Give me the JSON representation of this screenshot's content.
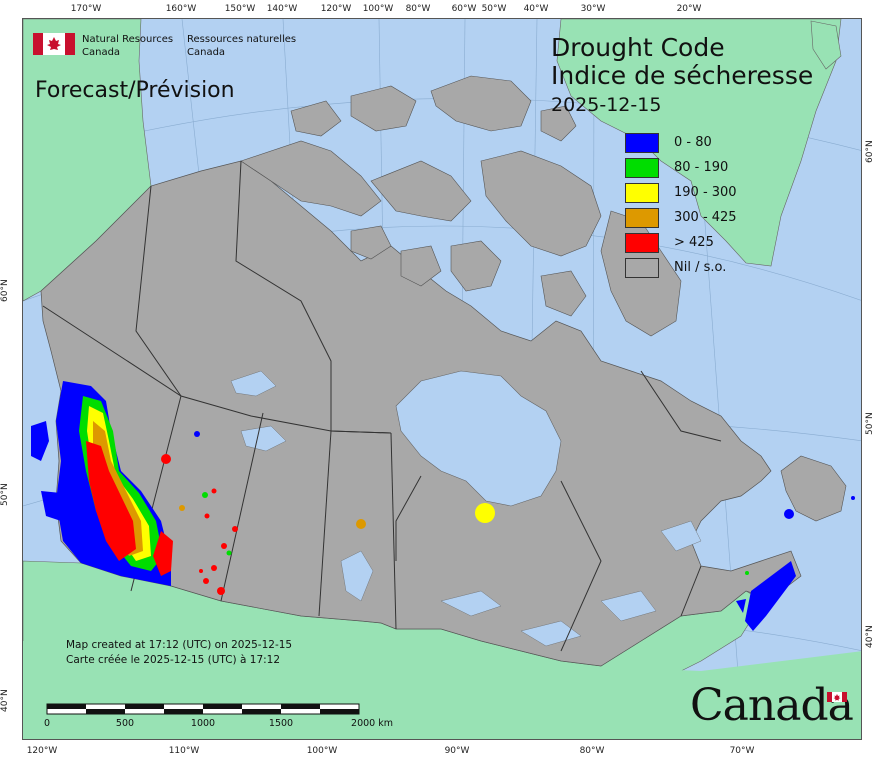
{
  "agency": {
    "name_en_line1": "Natural Resources",
    "name_en_line2": "Canada",
    "name_fr_line1": "Ressources naturelles",
    "name_fr_line2": "Canada"
  },
  "map": {
    "title_en": "Drought Code",
    "title_fr": "Indice de sécheresse",
    "date": "2025-12-15",
    "mode_label": "Forecast/Prévision",
    "wordmark": "Canada"
  },
  "legend": [
    {
      "label": "0 - 80",
      "color": "#0000ff"
    },
    {
      "label": "80 - 190",
      "color": "#00dd00"
    },
    {
      "label": "190 - 300",
      "color": "#ffff00"
    },
    {
      "label": "300 - 425",
      "color": "#dd9900"
    },
    {
      "label": "> 425",
      "color": "#ff0000"
    },
    {
      "label": "Nil / s.o.",
      "color": "#a8a8a8"
    }
  ],
  "credit": {
    "line_en": "Map created at 17:12 (UTC) on 2025-12-15",
    "line_fr": "Carte créée le 2025-12-15 (UTC) à 17:12"
  },
  "scale_bar": {
    "labels": [
      "0",
      "500",
      "1000",
      "1500",
      "2000 km"
    ]
  },
  "graticule": {
    "top": [
      "170°W",
      "160°W",
      "150°W",
      "140°W",
      "120°W",
      "100°W",
      "80°W",
      "60°W",
      "50°W",
      "40°W",
      "30°W",
      "20°W"
    ],
    "bottom": [
      "120°W",
      "110°W",
      "100°W",
      "90°W",
      "80°W",
      "70°W"
    ],
    "left": [
      "60°N",
      "50°N",
      "40°N"
    ],
    "right": [
      "60°N",
      "50°N",
      "40°N"
    ]
  },
  "colors": {
    "ocean": "#b3d1f2",
    "land_other": "#98e2b4",
    "canada": "#a8a8a8",
    "borders": "#333333"
  }
}
